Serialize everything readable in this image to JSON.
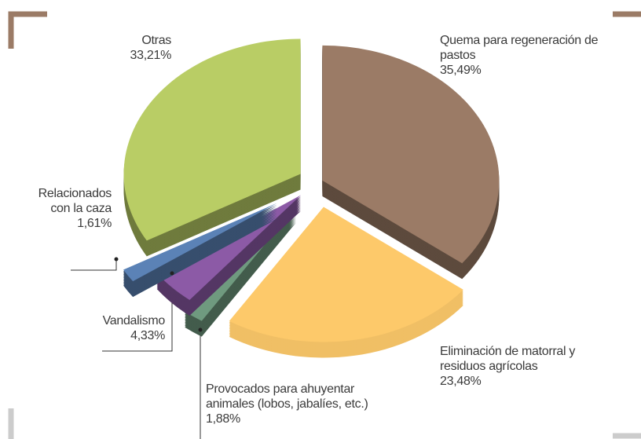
{
  "chart_data": {
    "type": "pie",
    "categories": [
      "Quema para regeneración de pastos",
      "Eliminación de matorral y residuos agrícolas",
      "Provocados para ahuyentar animales (lobos, jabalíes, etc.)",
      "Vandalismo",
      "Relacionados con la caza",
      "Otras"
    ],
    "values": [
      35.49,
      23.48,
      1.88,
      4.33,
      1.61,
      33.21
    ],
    "value_labels": [
      "35,49%",
      "23,48%",
      "1,88%",
      "4,33%",
      "1,61%",
      "33,21%"
    ],
    "colors": [
      "#9b7b66",
      "#fdc96a",
      "#6f9a7f",
      "#8c5aa6",
      "#5b82b6",
      "#b9cd65"
    ]
  }
}
